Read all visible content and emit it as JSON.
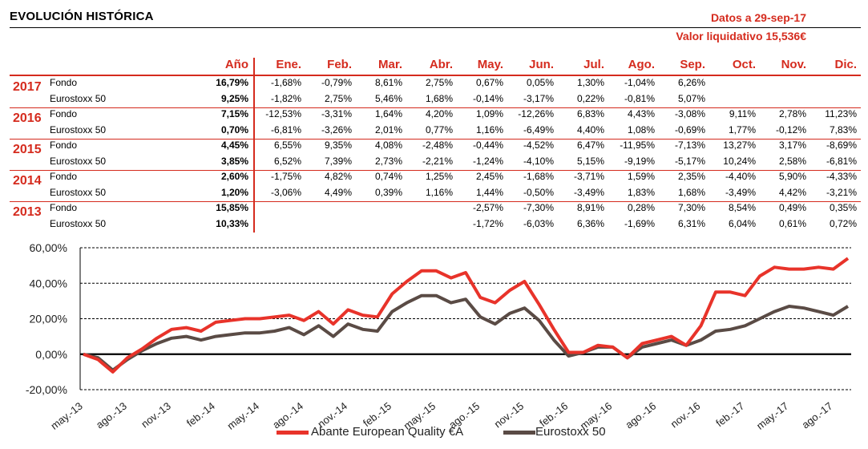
{
  "header": {
    "title": "EVOLUCIÓN HISTÓRICA",
    "date_text": "Datos a 29-sep-17",
    "nav_text": "Valor liquidativo 15,536€"
  },
  "table": {
    "columns": [
      "Año",
      "Ene.",
      "Feb.",
      "Mar.",
      "Abr.",
      "May.",
      "Jun.",
      "Jul.",
      "Ago.",
      "Sep.",
      "Oct.",
      "Nov.",
      "Dic."
    ],
    "years": [
      {
        "year": "2017",
        "rows": [
          {
            "label": "Fondo",
            "values": [
              "16,79%",
              "-1,68%",
              "-0,79%",
              "8,61%",
              "2,75%",
              "0,67%",
              "0,05%",
              "1,30%",
              "-1,04%",
              "6,26%",
              "",
              "",
              ""
            ]
          },
          {
            "label": "Eurostoxx 50",
            "values": [
              "9,25%",
              "-1,82%",
              "2,75%",
              "5,46%",
              "1,68%",
              "-0,14%",
              "-3,17%",
              "0,22%",
              "-0,81%",
              "5,07%",
              "",
              "",
              ""
            ]
          }
        ]
      },
      {
        "year": "2016",
        "rows": [
          {
            "label": "Fondo",
            "values": [
              "7,15%",
              "-12,53%",
              "-3,31%",
              "1,64%",
              "4,20%",
              "1,09%",
              "-12,26%",
              "6,83%",
              "4,43%",
              "-3,08%",
              "9,11%",
              "2,78%",
              "11,23%"
            ]
          },
          {
            "label": "Eurostoxx 50",
            "values": [
              "0,70%",
              "-6,81%",
              "-3,26%",
              "2,01%",
              "0,77%",
              "1,16%",
              "-6,49%",
              "4,40%",
              "1,08%",
              "-0,69%",
              "1,77%",
              "-0,12%",
              "7,83%"
            ]
          }
        ]
      },
      {
        "year": "2015",
        "rows": [
          {
            "label": "Fondo",
            "values": [
              "4,45%",
              "6,55%",
              "9,35%",
              "4,08%",
              "-2,48%",
              "-0,44%",
              "-4,52%",
              "6,47%",
              "-11,95%",
              "-7,13%",
              "13,27%",
              "3,17%",
              "-8,69%"
            ]
          },
          {
            "label": "Eurostoxx 50",
            "values": [
              "3,85%",
              "6,52%",
              "7,39%",
              "2,73%",
              "-2,21%",
              "-1,24%",
              "-4,10%",
              "5,15%",
              "-9,19%",
              "-5,17%",
              "10,24%",
              "2,58%",
              "-6,81%"
            ]
          }
        ]
      },
      {
        "year": "2014",
        "rows": [
          {
            "label": "Fondo",
            "values": [
              "2,60%",
              "-1,75%",
              "4,82%",
              "0,74%",
              "1,25%",
              "2,45%",
              "-1,68%",
              "-3,71%",
              "1,59%",
              "2,35%",
              "-4,40%",
              "5,90%",
              "-4,33%"
            ]
          },
          {
            "label": "Eurostoxx 50",
            "values": [
              "1,20%",
              "-3,06%",
              "4,49%",
              "0,39%",
              "1,16%",
              "1,44%",
              "-0,50%",
              "-3,49%",
              "1,83%",
              "1,68%",
              "-3,49%",
              "4,42%",
              "-3,21%"
            ]
          }
        ]
      },
      {
        "year": "2013",
        "rows": [
          {
            "label": "Fondo",
            "values": [
              "15,85%",
              "",
              "",
              "",
              "",
              "-2,57%",
              "-7,30%",
              "8,91%",
              "0,28%",
              "7,30%",
              "8,54%",
              "0,49%",
              "0,35%"
            ]
          },
          {
            "label": "Eurostoxx 50",
            "values": [
              "10,33%",
              "",
              "",
              "",
              "",
              "-1,72%",
              "-6,03%",
              "6,36%",
              "-1,69%",
              "6,31%",
              "6,04%",
              "0,61%",
              "0,72%"
            ]
          }
        ]
      }
    ]
  },
  "chart_data": {
    "type": "line",
    "title": "",
    "xlabel": "",
    "ylabel": "",
    "ylim": [
      -20,
      60
    ],
    "ytick_labels": [
      "60,00%",
      "40,00%",
      "20,00%",
      "0,00%",
      "-20,00%"
    ],
    "yticks": [
      60,
      40,
      20,
      0,
      -20
    ],
    "grid": "horizontal",
    "xtick_labels": [
      "may.-13",
      "ago.-13",
      "nov.-13",
      "feb.-14",
      "may.-14",
      "ago.-14",
      "nov.-14",
      "feb.-15",
      "may.-15",
      "ago.-15",
      "nov.-15",
      "feb.-16",
      "may.-16",
      "ago.-16",
      "nov.-16",
      "feb.-17",
      "may.-17",
      "ago.-17"
    ],
    "x": [
      "may.-13",
      "jun.-13",
      "jul.-13",
      "ago.-13",
      "sep.-13",
      "oct.-13",
      "nov.-13",
      "dic.-13",
      "ene.-14",
      "feb.-14",
      "mar.-14",
      "abr.-14",
      "may.-14",
      "jun.-14",
      "jul.-14",
      "ago.-14",
      "sep.-14",
      "oct.-14",
      "nov.-14",
      "dic.-14",
      "ene.-15",
      "feb.-15",
      "mar.-15",
      "abr.-15",
      "may.-15",
      "jun.-15",
      "jul.-15",
      "ago.-15",
      "sep.-15",
      "oct.-15",
      "nov.-15",
      "dic.-15",
      "ene.-16",
      "feb.-16",
      "mar.-16",
      "abr.-16",
      "may.-16",
      "jun.-16",
      "jul.-16",
      "ago.-16",
      "sep.-16",
      "oct.-16",
      "nov.-16",
      "dic.-16",
      "ene.-17",
      "feb.-17",
      "mar.-17",
      "abr.-17",
      "may.-17",
      "jun.-17",
      "jul.-17",
      "ago.-17",
      "sep.-17"
    ],
    "series": [
      {
        "name": "Abante European Quality €A",
        "color": "#e8332a",
        "values": [
          0,
          -3,
          -10,
          -2,
          3,
          9,
          14,
          15,
          13,
          18,
          19,
          20,
          20,
          21,
          22,
          19,
          24,
          17,
          25,
          22,
          21,
          34,
          41,
          47,
          47,
          43,
          46,
          32,
          29,
          36,
          41,
          28,
          14,
          1,
          1,
          5,
          4,
          -2,
          6,
          8,
          10,
          5,
          16,
          35,
          35,
          33,
          44,
          49,
          48,
          48,
          49,
          48,
          54
        ]
      },
      {
        "name": "Eurostoxx 50",
        "color": "#5a4b45",
        "values": [
          0,
          -2,
          -9,
          -3,
          2,
          6,
          9,
          10,
          8,
          10,
          11,
          12,
          12,
          13,
          15,
          11,
          16,
          10,
          17,
          14,
          13,
          24,
          29,
          33,
          33,
          29,
          31,
          21,
          17,
          23,
          26,
          19,
          8,
          -1,
          1,
          4,
          4,
          -2,
          4,
          6,
          8,
          5,
          8,
          13,
          14,
          16,
          20,
          24,
          27,
          26,
          24,
          22,
          27
        ]
      }
    ]
  },
  "legend": {
    "fund": "Abante European Quality €A",
    "index": "Eurostoxx 50"
  }
}
